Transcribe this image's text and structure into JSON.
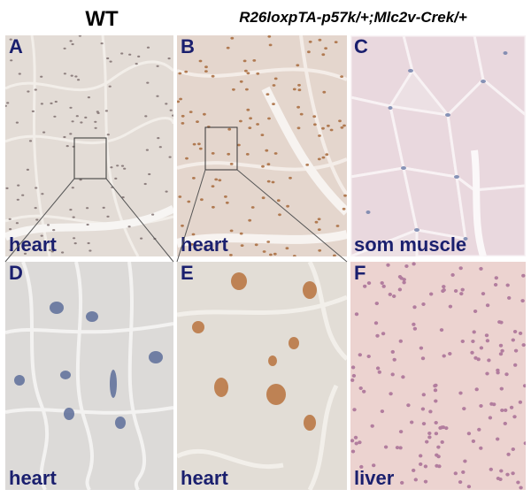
{
  "headers": {
    "wt": "WT",
    "genotype": "R26loxpTA-p57k/+;Mlc2v-Crek/+"
  },
  "panels": [
    {
      "letter": "A",
      "caption": "heart"
    },
    {
      "letter": "B",
      "caption": "heart"
    },
    {
      "letter": "C",
      "caption": "som muscle"
    },
    {
      "letter": "D",
      "caption": "heart"
    },
    {
      "letter": "E",
      "caption": "heart"
    },
    {
      "letter": "F",
      "caption": "liver"
    }
  ],
  "colors": {
    "label": "#1a1f6e",
    "heart_wt_bg": "#e3dcd6",
    "heart_mut_bg": "#e4d6cd",
    "muscle_bg": "#ece0e4",
    "liver_bg": "#ecd3d0",
    "nucleus_blue": "#6c7ca8",
    "nucleus_brown": "#b8733e"
  }
}
